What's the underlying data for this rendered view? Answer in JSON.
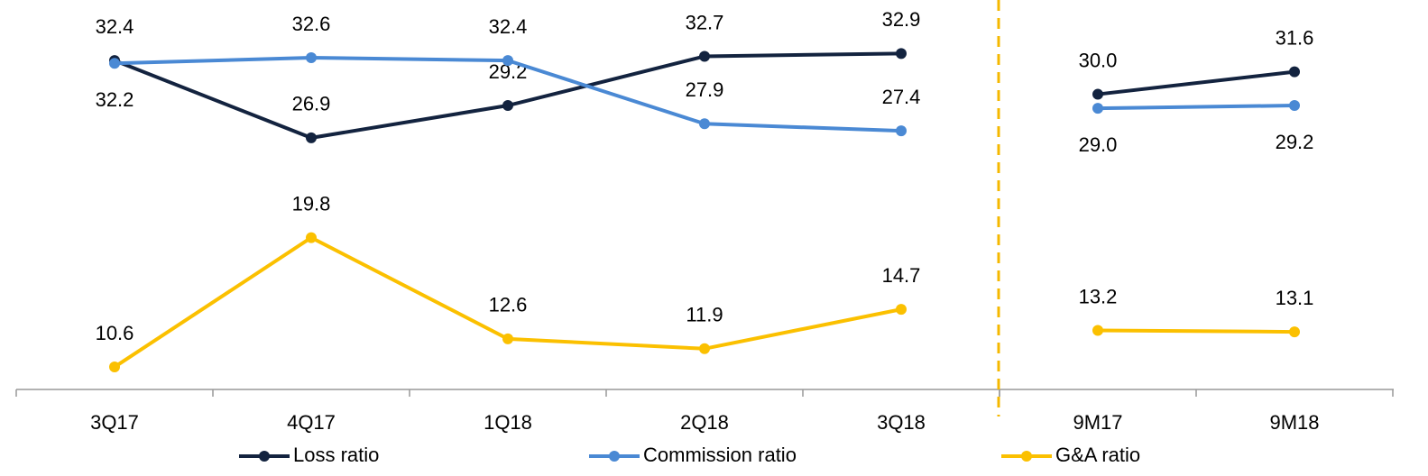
{
  "chart_data": [
    {
      "type": "line",
      "categories": [
        "3Q17",
        "4Q17",
        "1Q18",
        "2Q18",
        "3Q18"
      ],
      "series": [
        {
          "name": "Loss ratio",
          "color": "#13233f",
          "values": [
            32.4,
            26.9,
            29.2,
            32.7,
            32.9
          ]
        },
        {
          "name": "Commission ratio",
          "color": "#4a89d4",
          "values": [
            32.2,
            32.6,
            32.4,
            27.9,
            27.4
          ]
        },
        {
          "name": "G&A ratio",
          "color": "#fbc000",
          "values": [
            10.6,
            19.8,
            12.6,
            11.9,
            14.7
          ]
        }
      ],
      "ylim": [
        9,
        36
      ]
    },
    {
      "type": "line",
      "categories": [
        "9M17",
        "9M18"
      ],
      "series": [
        {
          "color": "#13233f",
          "values": [
            30.0,
            31.6
          ]
        },
        {
          "color": "#4a89d4",
          "values": [
            29.0,
            29.2
          ]
        },
        {
          "color": "#fbc000",
          "values": [
            13.2,
            13.1
          ]
        }
      ],
      "ylim": [
        9,
        36
      ]
    }
  ]
}
